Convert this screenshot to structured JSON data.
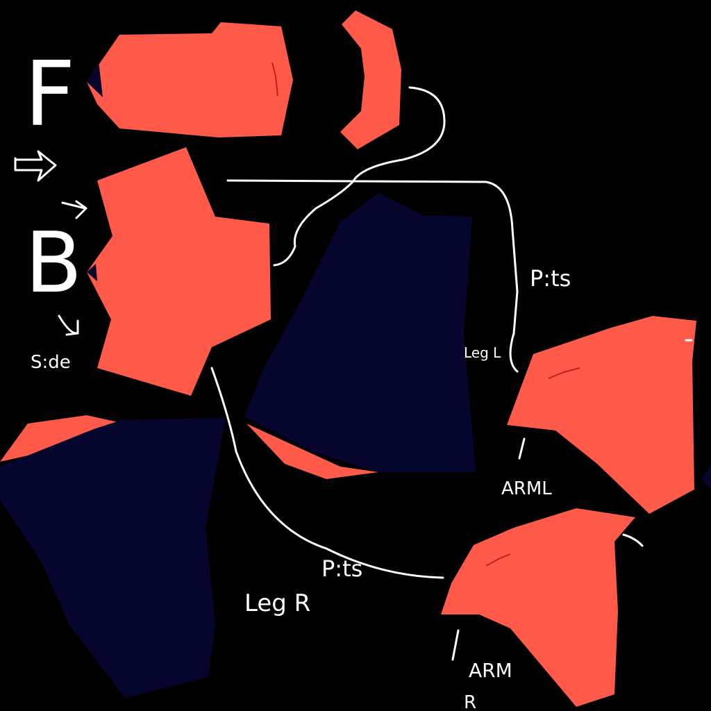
{
  "labels": {
    "front": "F",
    "back": "B",
    "side": "S:de",
    "pits_upper": "P:ts",
    "pits_lower": "P:ts",
    "leg_l": "Leg L",
    "leg_r": "Leg R",
    "arm_l": "ARML",
    "arm_r_1": "ARM",
    "arm_r_2": "R"
  },
  "colors": {
    "background": "#000000",
    "skin": "#ff5a4a",
    "navy": "#06052e",
    "stroke": "#ffffff",
    "mark": "#c41e1e"
  }
}
